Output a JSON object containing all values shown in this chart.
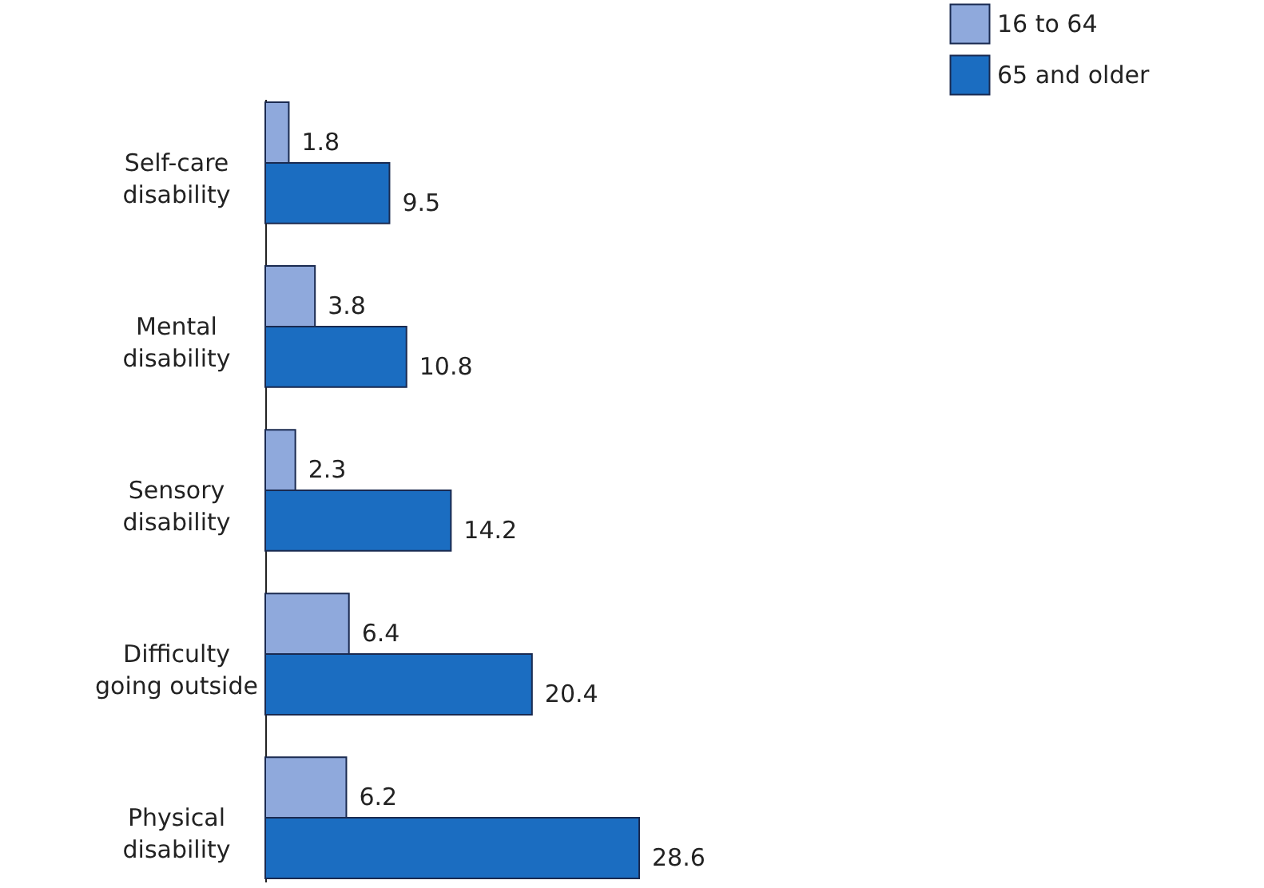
{
  "chart_data": {
    "type": "bar",
    "orientation": "horizontal",
    "categories": [
      "Self-care disability",
      "Mental disability",
      "Sensory disability",
      "Difficulty going outside",
      "Physical disability"
    ],
    "series": [
      {
        "name": "16 to 64",
        "color": "#8fa9dc",
        "values": [
          1.8,
          3.8,
          2.3,
          6.4,
          6.2
        ]
      },
      {
        "name": "65 and older",
        "color": "#1b6dc1",
        "values": [
          9.5,
          10.8,
          14.2,
          20.4,
          28.6
        ]
      }
    ],
    "data_labels": true,
    "legend": "top right",
    "grid": false
  }
}
